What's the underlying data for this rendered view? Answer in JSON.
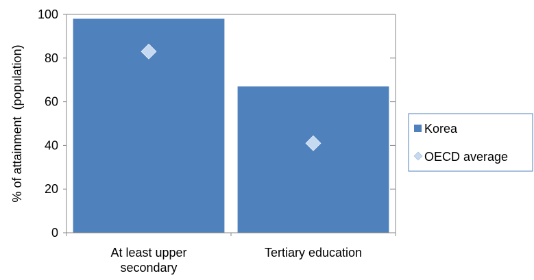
{
  "chart_data": {
    "type": "bar",
    "categories": [
      "At least upper secondary",
      "Tertiary education"
    ],
    "category_label_lines": [
      [
        "At least upper",
        "secondary"
      ],
      [
        "Tertiary education"
      ]
    ],
    "series": [
      {
        "name": "Korea",
        "kind": "bar",
        "values": [
          98,
          67
        ],
        "color": "#4f81bd"
      },
      {
        "name": "OECD average",
        "kind": "marker",
        "marker": "diamond",
        "values": [
          83,
          41
        ],
        "color": "#c5d9f1"
      }
    ],
    "title": "",
    "xlabel": "",
    "ylabel": "% of attainment  (population)",
    "ylim": [
      0,
      100
    ],
    "yticks": [
      0,
      20,
      40,
      60,
      80,
      100
    ],
    "grid": false,
    "legend_position": "right"
  }
}
